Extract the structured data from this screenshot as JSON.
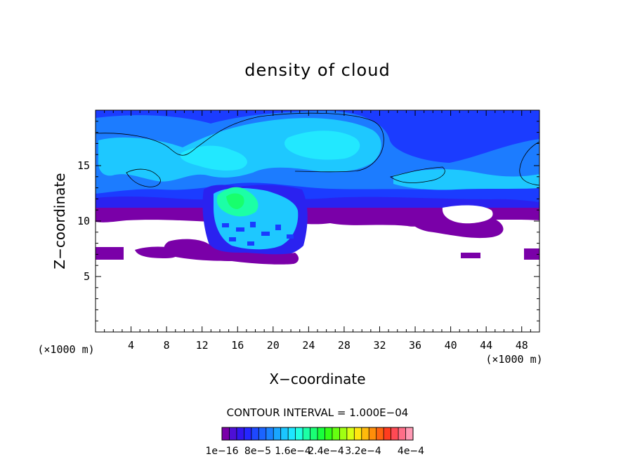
{
  "chart_data": {
    "type": "heatmap",
    "title": "density of cloud",
    "xlabel": "X−coordinate",
    "ylabel": "Z−coordinate",
    "x_unit": "(×1000 m)",
    "y_unit": "(×1000 m)",
    "xlim": [
      0,
      50
    ],
    "ylim": [
      0,
      20
    ],
    "x_ticks": [
      4,
      8,
      12,
      16,
      20,
      24,
      28,
      32,
      36,
      40,
      44,
      48
    ],
    "y_ticks": [
      5,
      10,
      15
    ],
    "contour_interval_label": "CONTOUR INTERVAL = 1.000E−04",
    "colorbar": {
      "colors": [
        "#7a00a8",
        "#4e0fd6",
        "#3216ee",
        "#2426ff",
        "#1e48ff",
        "#1b64ff",
        "#1a82ff",
        "#19a6ff",
        "#1bc6ff",
        "#1ee6ff",
        "#22ffe0",
        "#1cffa6",
        "#1aff74",
        "#18ff3c",
        "#33ff16",
        "#66ff10",
        "#a0ff12",
        "#d8ff14",
        "#ffe610",
        "#ffba0c",
        "#ff8e0a",
        "#ff6410",
        "#ff3c1e",
        "#ff4a54",
        "#ff6e88",
        "#ff9ab4"
      ],
      "tick_labels": [
        "1e−16",
        "8e−5",
        "1.6e−4",
        "2.4e−4",
        "3.2e−4",
        "4e−4"
      ]
    }
  }
}
